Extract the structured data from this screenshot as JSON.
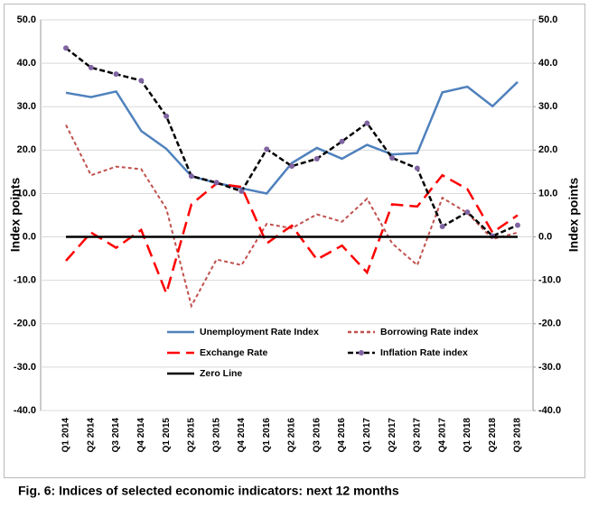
{
  "chart_data": {
    "type": "line",
    "caption": "Fig. 6: Indices of selected economic indicators: next 12 months",
    "ylabel": "Index points",
    "y2label": "Index points",
    "categories": [
      "Q1 2014",
      "Q2 2014",
      "Q3 2014",
      "Q4 2014",
      "Q1 2015",
      "Q2 2015",
      "Q3 2015",
      "Q4 2014",
      "Q1 2016",
      "Q2 2016",
      "Q3 2016",
      "Q4 2016",
      "Q1 2017",
      "Q2 2017",
      "Q3 2017",
      "Q4 2017",
      "Q1 2018",
      "Q2 2018",
      "Q3 2018"
    ],
    "ylim": [
      -40,
      50
    ],
    "yticks": [
      {
        "value": -40,
        "label": "-40.0"
      },
      {
        "value": -30,
        "label": "-30.0"
      },
      {
        "value": -20,
        "label": "-20.0"
      },
      {
        "value": -10,
        "label": "-10.0"
      },
      {
        "value": 0,
        "label": "0.0"
      },
      {
        "value": 10,
        "label": "10.0"
      },
      {
        "value": 20,
        "label": "20.0"
      },
      {
        "value": 30,
        "label": "30.0"
      },
      {
        "value": 40,
        "label": "40.0"
      },
      {
        "value": 50,
        "label": "50.0"
      }
    ],
    "y2lim": [
      -40,
      50
    ],
    "y2ticks": [
      {
        "value": -40,
        "label": "-40.0"
      },
      {
        "value": -30,
        "label": "-30.0"
      },
      {
        "value": -20,
        "label": "-20.0"
      },
      {
        "value": -10,
        "label": "-10.0"
      },
      {
        "value": 0,
        "label": "0.0"
      },
      {
        "value": 10,
        "label": "10.0"
      },
      {
        "value": 20,
        "label": "20.0"
      },
      {
        "value": 30,
        "label": "30.0"
      },
      {
        "value": 40,
        "label": "40.0"
      },
      {
        "value": 50,
        "label": "50.0"
      }
    ],
    "grid": true,
    "series": [
      {
        "name": "Unemployment Rate Index",
        "color": "#4f81bd",
        "line_style": "solid",
        "values": [
          33.2,
          32.2,
          33.5,
          24.4,
          20.3,
          14,
          12.4,
          11.2,
          10,
          17,
          20.5,
          18,
          21.2,
          19,
          19.3,
          33.3,
          34.6,
          30.1,
          35.7
        ]
      },
      {
        "name": "Borrowing Rate index",
        "color": "#c0504d",
        "line_style": "short-dash",
        "values": [
          25.8,
          14.2,
          16.2,
          15.6,
          6.5,
          -15.9,
          -5.2,
          -6.5,
          3,
          2,
          5.2,
          3.5,
          8.8,
          -1.5,
          -6.5,
          9,
          5.5,
          -0.5,
          1
        ]
      },
      {
        "name": "Exchange Rate",
        "color": "#ff0000",
        "line_style": "long-dash",
        "values": [
          -5.5,
          1,
          -2.5,
          1.6,
          -13,
          7.5,
          12.3,
          11.5,
          -1.5,
          2.6,
          -5.2,
          -2,
          -8.2,
          7.5,
          7,
          14.2,
          11,
          1,
          5
        ]
      },
      {
        "name": "Inflation Rate index",
        "color": "#000000",
        "line_style": "dash",
        "marker": "circle",
        "marker_color": "#8064a2",
        "values": [
          43.5,
          39,
          37.5,
          36,
          27.8,
          14,
          12.5,
          10.5,
          20.2,
          16.3,
          18,
          22,
          26.2,
          18.2,
          15.8,
          2.4,
          5.7,
          0.2,
          2.7
        ]
      },
      {
        "name": "Zero Line",
        "color": "#000000",
        "line_style": "solid",
        "values": [
          0,
          0,
          0,
          0,
          0,
          0,
          0,
          0,
          0,
          0,
          0,
          0,
          0,
          0,
          0,
          0,
          0,
          0,
          0
        ]
      }
    ]
  }
}
